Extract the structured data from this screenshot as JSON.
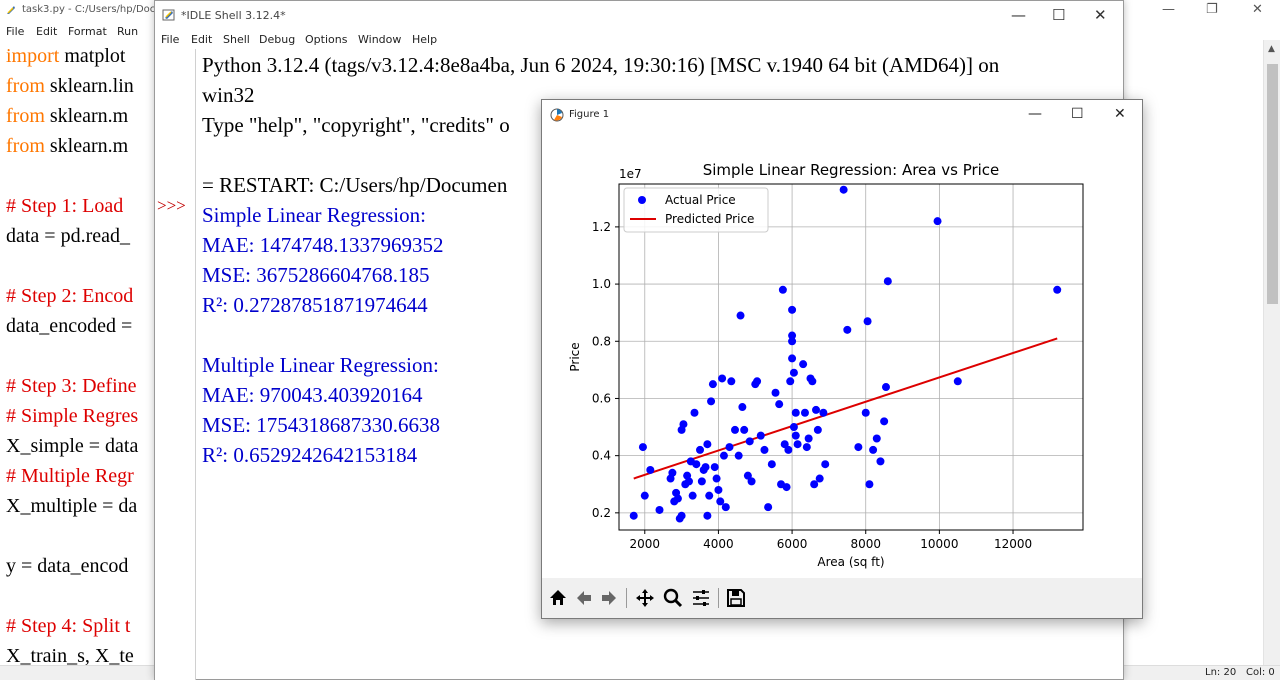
{
  "editor": {
    "title": "task3.py - C:/Users/hp/Doc",
    "menu": [
      "File",
      "Edit",
      "Format",
      "Run"
    ],
    "code_lines": [
      {
        "kw": "import",
        "rest": " matplot"
      },
      {
        "kw": "from",
        "rest": " sklearn.lin"
      },
      {
        "kw": "from",
        "rest": " sklearn.m"
      },
      {
        "kw": "from",
        "rest": " sklearn.m"
      },
      {
        "comment": "# Step 1: Load "
      },
      {
        "text": "data = pd.read_"
      },
      {
        "comment": "# Step 2: Encod"
      },
      {
        "text": "data_encoded ="
      },
      {
        "comment": "# Step 3: Define"
      },
      {
        "comment": "# Simple Regres"
      },
      {
        "text": "X_simple = data"
      },
      {
        "comment": "# Multiple Regr"
      },
      {
        "text": "X_multiple = da"
      },
      {
        "text": "y = data_encod"
      },
      {
        "comment": "# Step 4: Split t"
      },
      {
        "text": "X_train_s, X_te"
      }
    ],
    "status_line": "Ln: 20",
    "status_col": "Col: 0"
  },
  "shell": {
    "title": "*IDLE Shell 3.12.4*",
    "menu": [
      "File",
      "Edit",
      "Shell",
      "Debug",
      "Options",
      "Window",
      "Help"
    ],
    "prompt": ">>>",
    "banner_line1": "Python 3.12.4 (tags/v3.12.4:8e8a4ba, Jun  6 2024, 19:30:16) [MSC v.1940 64 bit (AMD64)] on",
    "banner_line2": "win32",
    "banner_line3": "Type \"help\", \"copyright\", \"credits\" o",
    "restart_line": "= RESTART: C:/Users/hp/Documen",
    "simple_header": "Simple Linear Regression:",
    "simple_mae": "MAE: 1474748.1337969352",
    "simple_mse": "MSE: 3675286604768.185",
    "simple_r2": "R²: 0.27287851871974644",
    "multi_header": " Multiple Linear Regression:",
    "multi_mae": "MAE: 970043.403920164",
    "multi_mse": "MSE: 1754318687330.6638",
    "multi_r2": "R²: 0.6529242642153184"
  },
  "figure": {
    "window_title": "Figure 1"
  },
  "chart_data": {
    "type": "scatter",
    "title": "Simple Linear Regression: Area vs Price",
    "xlabel": "Area (sq ft)",
    "ylabel": "Price",
    "y_offset_label": "1e7",
    "xlim": [
      1300,
      13900
    ],
    "ylim": [
      0.14,
      1.35
    ],
    "xticks": [
      2000,
      4000,
      6000,
      8000,
      10000,
      12000
    ],
    "yticks": [
      0.2,
      0.4,
      0.6,
      0.8,
      1.0,
      1.2
    ],
    "grid": true,
    "legend_position": "top-left",
    "colors": {
      "scatter": "#0000ff",
      "line": "#dd0000"
    },
    "series": [
      {
        "name": "Actual Price",
        "kind": "scatter",
        "points": [
          [
            1700,
            0.19
          ],
          [
            1950,
            0.43
          ],
          [
            2000,
            0.26
          ],
          [
            2150,
            0.35
          ],
          [
            2400,
            0.21
          ],
          [
            2700,
            0.32
          ],
          [
            2750,
            0.34
          ],
          [
            2800,
            0.24
          ],
          [
            2850,
            0.27
          ],
          [
            2900,
            0.25
          ],
          [
            2950,
            0.18
          ],
          [
            3000,
            0.19
          ],
          [
            3000,
            0.49
          ],
          [
            3050,
            0.51
          ],
          [
            3100,
            0.3
          ],
          [
            3150,
            0.33
          ],
          [
            3200,
            0.31
          ],
          [
            3250,
            0.38
          ],
          [
            3300,
            0.26
          ],
          [
            3350,
            0.55
          ],
          [
            3400,
            0.37
          ],
          [
            3500,
            0.42
          ],
          [
            3550,
            0.31
          ],
          [
            3600,
            0.35
          ],
          [
            3650,
            0.36
          ],
          [
            3700,
            0.44
          ],
          [
            3700,
            0.19
          ],
          [
            3750,
            0.26
          ],
          [
            3800,
            0.59
          ],
          [
            3850,
            0.65
          ],
          [
            3900,
            0.36
          ],
          [
            3950,
            0.32
          ],
          [
            4000,
            0.28
          ],
          [
            4050,
            0.24
          ],
          [
            4100,
            0.67
          ],
          [
            4150,
            0.4
          ],
          [
            4200,
            0.22
          ],
          [
            4300,
            0.43
          ],
          [
            4350,
            0.66
          ],
          [
            4450,
            0.49
          ],
          [
            4550,
            0.4
          ],
          [
            4600,
            0.89
          ],
          [
            4650,
            0.57
          ],
          [
            4700,
            0.49
          ],
          [
            4800,
            0.33
          ],
          [
            4850,
            0.45
          ],
          [
            4900,
            0.31
          ],
          [
            5000,
            0.65
          ],
          [
            5050,
            0.66
          ],
          [
            5150,
            0.47
          ],
          [
            5250,
            0.42
          ],
          [
            5350,
            0.22
          ],
          [
            5450,
            0.37
          ],
          [
            5550,
            0.62
          ],
          [
            5650,
            0.58
          ],
          [
            5700,
            0.3
          ],
          [
            5750,
            0.98
          ],
          [
            5800,
            0.44
          ],
          [
            5850,
            0.29
          ],
          [
            5900,
            0.42
          ],
          [
            5950,
            0.66
          ],
          [
            6000,
            0.91
          ],
          [
            6000,
            0.82
          ],
          [
            6000,
            0.8
          ],
          [
            6000,
            0.74
          ],
          [
            6050,
            0.69
          ],
          [
            6050,
            0.5
          ],
          [
            6100,
            0.55
          ],
          [
            6100,
            0.47
          ],
          [
            6150,
            0.44
          ],
          [
            6300,
            0.72
          ],
          [
            6350,
            0.55
          ],
          [
            6400,
            0.43
          ],
          [
            6450,
            0.46
          ],
          [
            6500,
            0.67
          ],
          [
            6550,
            0.66
          ],
          [
            6600,
            0.3
          ],
          [
            6650,
            0.56
          ],
          [
            6700,
            0.49
          ],
          [
            6750,
            0.32
          ],
          [
            6850,
            0.55
          ],
          [
            6900,
            0.37
          ],
          [
            7400,
            1.33
          ],
          [
            7500,
            0.84
          ],
          [
            7800,
            0.43
          ],
          [
            8000,
            0.55
          ],
          [
            8050,
            0.87
          ],
          [
            8100,
            0.3
          ],
          [
            8200,
            0.42
          ],
          [
            8300,
            0.46
          ],
          [
            8400,
            0.38
          ],
          [
            8500,
            0.52
          ],
          [
            8550,
            0.64
          ],
          [
            8600,
            1.01
          ],
          [
            9950,
            1.22
          ],
          [
            10500,
            0.66
          ],
          [
            13200,
            0.98
          ]
        ]
      },
      {
        "name": "Predicted Price",
        "kind": "line",
        "points": [
          [
            1700,
            0.32
          ],
          [
            13200,
            0.81
          ]
        ]
      }
    ]
  }
}
